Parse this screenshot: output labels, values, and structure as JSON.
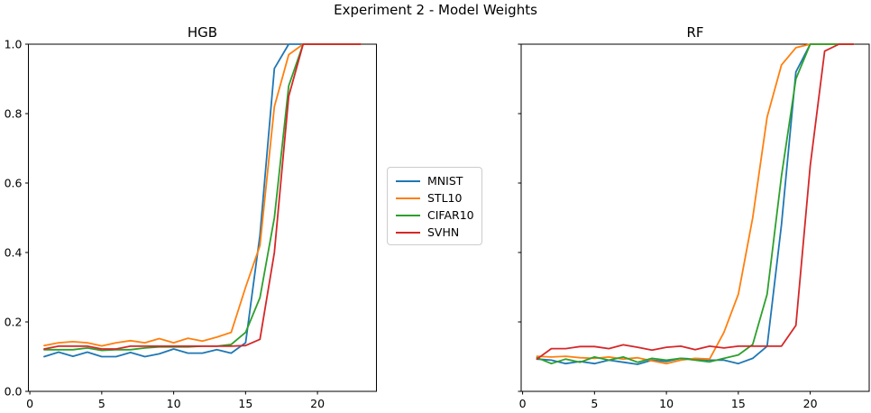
{
  "suptitle": "Experiment 2 - Model Weights",
  "colors": {
    "mnist": "#1f77b4",
    "stl10": "#ff7f0e",
    "cifar10": "#2ca02c",
    "svhn": "#d62728",
    "axis": "#000000",
    "legend_border": "#cccccc",
    "background": "#ffffff"
  },
  "legend": {
    "position": "center-between-plots",
    "items": [
      {
        "label": "MNIST",
        "color": "#1f77b4"
      },
      {
        "label": "STL10",
        "color": "#ff7f0e"
      },
      {
        "label": "CIFAR10",
        "color": "#2ca02c"
      },
      {
        "label": "SVHN",
        "color": "#d62728"
      }
    ]
  },
  "chart_data": [
    {
      "type": "line",
      "title": "HGB",
      "xlim": [
        -0.1,
        24.1
      ],
      "ylim": [
        0,
        1
      ],
      "grid": false,
      "xticks": [
        0,
        5,
        10,
        15,
        20
      ],
      "xtick_labels": [
        "0",
        "5",
        "10",
        "15",
        "20"
      ],
      "yticks": [
        0.0,
        0.2,
        0.4,
        0.6,
        0.8,
        1.0
      ],
      "ytick_labels": [
        "0.0",
        "0.2",
        "0.4",
        "0.6",
        "0.8",
        "1.0"
      ],
      "x": [
        1,
        2,
        3,
        4,
        5,
        6,
        7,
        8,
        9,
        10,
        11,
        12,
        13,
        14,
        15,
        16,
        17,
        18,
        19,
        20,
        21,
        22,
        23
      ],
      "series": [
        {
          "name": "MNIST",
          "color": "#1f77b4",
          "values": [
            0.1,
            0.113,
            0.101,
            0.113,
            0.1,
            0.1,
            0.112,
            0.1,
            0.108,
            0.122,
            0.11,
            0.11,
            0.12,
            0.11,
            0.14,
            0.45,
            0.93,
            1.0,
            1.0,
            1.0,
            1.0,
            1.0,
            1.0
          ]
        },
        {
          "name": "STL10",
          "color": "#ff7f0e",
          "values": [
            0.132,
            0.14,
            0.143,
            0.14,
            0.131,
            0.14,
            0.146,
            0.14,
            0.152,
            0.14,
            0.153,
            0.145,
            0.156,
            0.17,
            0.3,
            0.42,
            0.82,
            0.97,
            1.0,
            1.0,
            1.0,
            1.0,
            1.0
          ]
        },
        {
          "name": "CIFAR10",
          "color": "#2ca02c",
          "values": [
            0.12,
            0.12,
            0.12,
            0.125,
            0.118,
            0.12,
            0.12,
            0.125,
            0.128,
            0.128,
            0.128,
            0.13,
            0.13,
            0.135,
            0.17,
            0.27,
            0.5,
            0.88,
            1.0,
            1.0,
            1.0,
            1.0,
            1.0
          ]
        },
        {
          "name": "SVHN",
          "color": "#d62728",
          "values": [
            0.122,
            0.13,
            0.13,
            0.13,
            0.122,
            0.122,
            0.13,
            0.13,
            0.13,
            0.13,
            0.13,
            0.13,
            0.13,
            0.13,
            0.132,
            0.15,
            0.4,
            0.85,
            1.0,
            1.0,
            1.0,
            1.0,
            1.0
          ]
        }
      ]
    },
    {
      "type": "line",
      "title": "RF",
      "xlim": [
        -0.1,
        24.1
      ],
      "ylim": [
        0,
        1
      ],
      "grid": false,
      "xticks": [
        0,
        5,
        10,
        15,
        20
      ],
      "xtick_labels": [
        "0",
        "5",
        "10",
        "15",
        "20"
      ],
      "yticks": [
        0.0,
        0.2,
        0.4,
        0.6,
        0.8,
        1.0
      ],
      "ytick_labels": [],
      "x": [
        1,
        2,
        3,
        4,
        5,
        6,
        7,
        8,
        9,
        10,
        11,
        12,
        13,
        14,
        15,
        16,
        17,
        18,
        19,
        20,
        21,
        22,
        23
      ],
      "series": [
        {
          "name": "MNIST",
          "color": "#1f77b4",
          "values": [
            0.093,
            0.09,
            0.08,
            0.086,
            0.08,
            0.09,
            0.084,
            0.078,
            0.09,
            0.086,
            0.095,
            0.093,
            0.09,
            0.09,
            0.08,
            0.095,
            0.13,
            0.48,
            0.92,
            1.0,
            1.0,
            1.0,
            1.0
          ]
        },
        {
          "name": "STL10",
          "color": "#ff7f0e",
          "values": [
            0.101,
            0.099,
            0.101,
            0.097,
            0.095,
            0.099,
            0.093,
            0.097,
            0.088,
            0.08,
            0.09,
            0.095,
            0.093,
            0.17,
            0.28,
            0.5,
            0.79,
            0.94,
            0.99,
            1.0,
            1.0,
            1.0,
            1.0
          ]
        },
        {
          "name": "CIFAR10",
          "color": "#2ca02c",
          "values": [
            0.097,
            0.08,
            0.093,
            0.084,
            0.099,
            0.09,
            0.099,
            0.084,
            0.095,
            0.09,
            0.095,
            0.09,
            0.085,
            0.095,
            0.105,
            0.135,
            0.28,
            0.62,
            0.9,
            1.0,
            1.0,
            1.0,
            1.0
          ]
        },
        {
          "name": "SVHN",
          "color": "#d62728",
          "values": [
            0.093,
            0.123,
            0.123,
            0.129,
            0.129,
            0.123,
            0.134,
            0.127,
            0.119,
            0.127,
            0.13,
            0.12,
            0.13,
            0.125,
            0.13,
            0.13,
            0.13,
            0.13,
            0.19,
            0.65,
            0.98,
            1.0,
            1.0
          ]
        }
      ]
    }
  ]
}
